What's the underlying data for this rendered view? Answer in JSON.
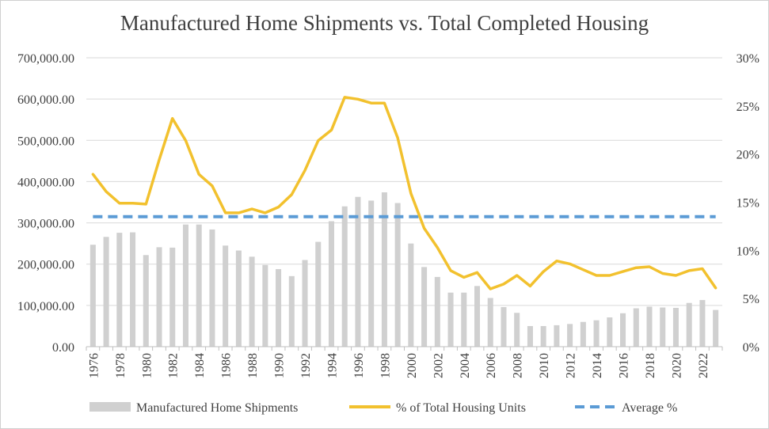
{
  "chart_data": {
    "type": "bar+line",
    "title": "Manufactured Home Shipments vs. Total Completed Housing",
    "xlabel": "",
    "ylabel_left": "",
    "ylabel_right": "",
    "years": [
      1976,
      1977,
      1978,
      1979,
      1980,
      1981,
      1982,
      1983,
      1984,
      1985,
      1986,
      1987,
      1988,
      1989,
      1990,
      1991,
      1992,
      1993,
      1994,
      1995,
      1996,
      1997,
      1998,
      1999,
      2000,
      2001,
      2002,
      2003,
      2004,
      2005,
      2006,
      2007,
      2008,
      2009,
      2010,
      2011,
      2012,
      2013,
      2014,
      2015,
      2016,
      2017,
      2018,
      2019,
      2020,
      2021,
      2022,
      2023
    ],
    "x_tick_labels": [
      "1976",
      "1978",
      "1980",
      "1982",
      "1984",
      "1986",
      "1988",
      "1990",
      "1992",
      "1994",
      "1996",
      "1998",
      "2000",
      "2002",
      "2004",
      "2006",
      "2008",
      "2010",
      "2012",
      "2014",
      "2016",
      "2018",
      "2020",
      "2022"
    ],
    "ylim_left": [
      0,
      700000
    ],
    "y_ticks_left": [
      "0.00",
      "100,000.00",
      "200,000.00",
      "300,000.00",
      "400,000.00",
      "500,000.00",
      "600,000.00",
      "700,000.00"
    ],
    "ylim_right": [
      0,
      30
    ],
    "y_ticks_right": [
      "0%",
      "5%",
      "10%",
      "15%",
      "20%",
      "25%",
      "30%"
    ],
    "series": [
      {
        "name": "Manufactured Home Shipments",
        "type": "bar",
        "axis": "left",
        "color": "#d0d0d0",
        "values": [
          247000,
          266000,
          276000,
          277000,
          222000,
          241000,
          240000,
          296000,
          296000,
          284000,
          245000,
          233000,
          218000,
          198000,
          188000,
          171000,
          210000,
          254000,
          304000,
          340000,
          363000,
          354000,
          374000,
          348000,
          250000,
          193000,
          169000,
          131000,
          131000,
          147000,
          118000,
          96000,
          82000,
          50000,
          50000,
          52000,
          55000,
          60000,
          64000,
          71000,
          81000,
          93000,
          97000,
          95000,
          94000,
          106000,
          113000,
          89000
        ]
      },
      {
        "name": "% of Total Housing Units",
        "type": "line",
        "axis": "right",
        "color": "#f2c12e",
        "values": [
          17.9,
          16.1,
          14.9,
          14.9,
          14.8,
          19.4,
          23.7,
          21.4,
          17.9,
          16.7,
          13.9,
          13.9,
          14.3,
          13.9,
          14.5,
          15.8,
          18.3,
          21.4,
          22.5,
          25.9,
          25.7,
          25.3,
          25.3,
          21.7,
          15.9,
          12.3,
          10.3,
          7.9,
          7.2,
          7.7,
          6.0,
          6.5,
          7.4,
          6.3,
          7.8,
          8.9,
          8.6,
          8.0,
          7.4,
          7.4,
          7.8,
          8.2,
          8.3,
          7.6,
          7.4,
          7.9,
          8.1,
          6.1
        ]
      },
      {
        "name": "Average %",
        "type": "line-dashed",
        "axis": "right",
        "color": "#5b9bd5",
        "value": 13.5
      }
    ],
    "legend_position": "bottom",
    "grid": true
  }
}
